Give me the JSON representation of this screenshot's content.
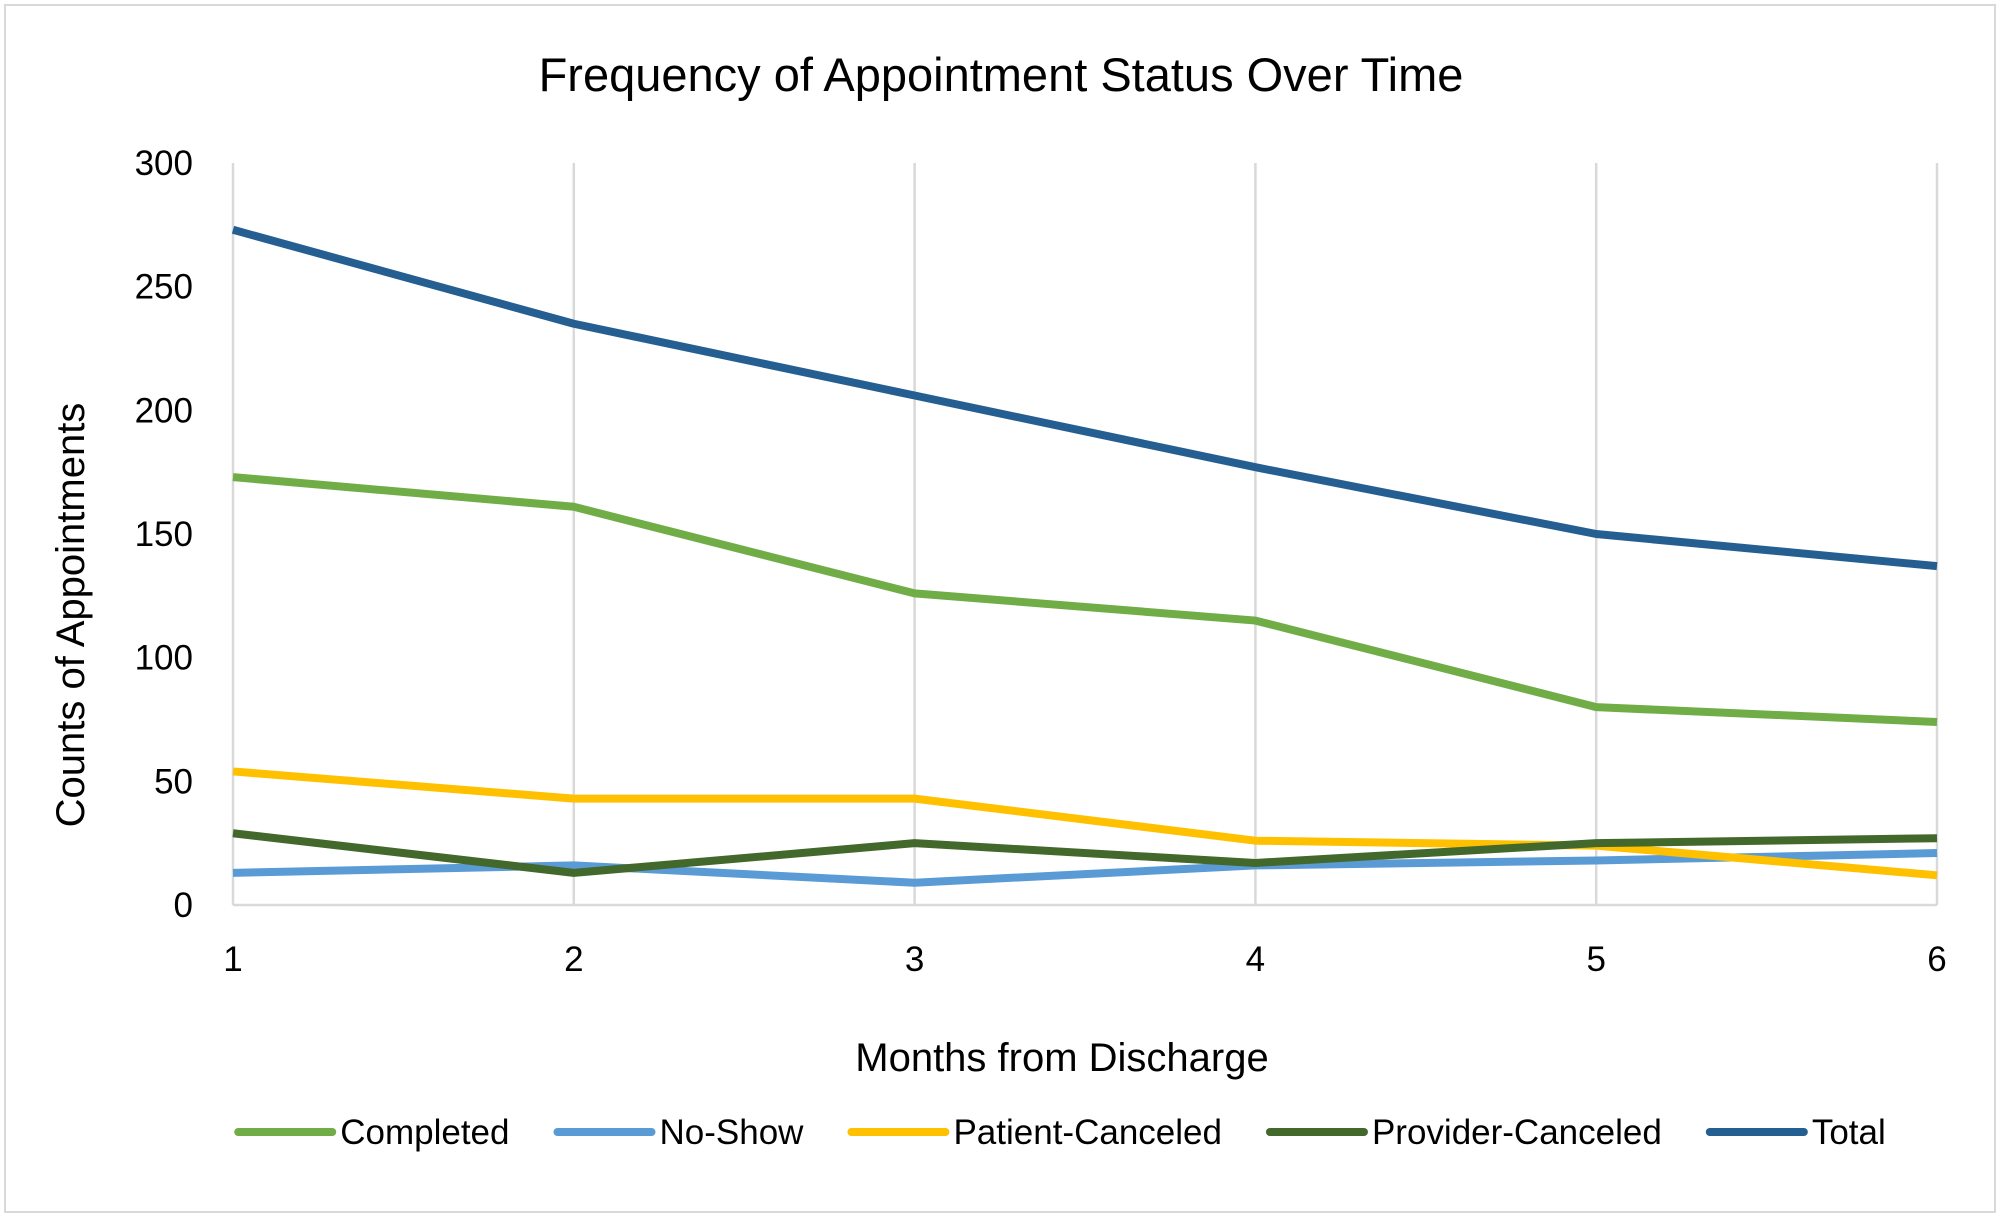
{
  "chart_data": {
    "type": "line",
    "title": "Frequency of Appointment Status Over Time",
    "xlabel": "Months from Discharge",
    "ylabel": "Counts of Appointments",
    "categories": [
      "1",
      "2",
      "3",
      "4",
      "5",
      "6"
    ],
    "ylim": [
      0,
      300
    ],
    "yticks": [
      "0",
      "50",
      "100",
      "150",
      "200",
      "250",
      "300"
    ],
    "grid": "vertical",
    "legend_position": "bottom",
    "series": [
      {
        "name": "Completed",
        "color": "#70ad47",
        "values": [
          173,
          161,
          126,
          115,
          80,
          74
        ]
      },
      {
        "name": "No-Show",
        "color": "#5b9bd5",
        "values": [
          13,
          16,
          9,
          16,
          18,
          21
        ]
      },
      {
        "name": "Patient-Canceled",
        "color": "#ffc000",
        "values": [
          54,
          43,
          43,
          26,
          24,
          12
        ]
      },
      {
        "name": "Provider-Canceled",
        "color": "#43682b",
        "values": [
          29,
          13,
          25,
          17,
          25,
          27
        ]
      },
      {
        "name": "Total",
        "color": "#255e91",
        "values": [
          273,
          235,
          206,
          177,
          150,
          137
        ]
      }
    ]
  }
}
